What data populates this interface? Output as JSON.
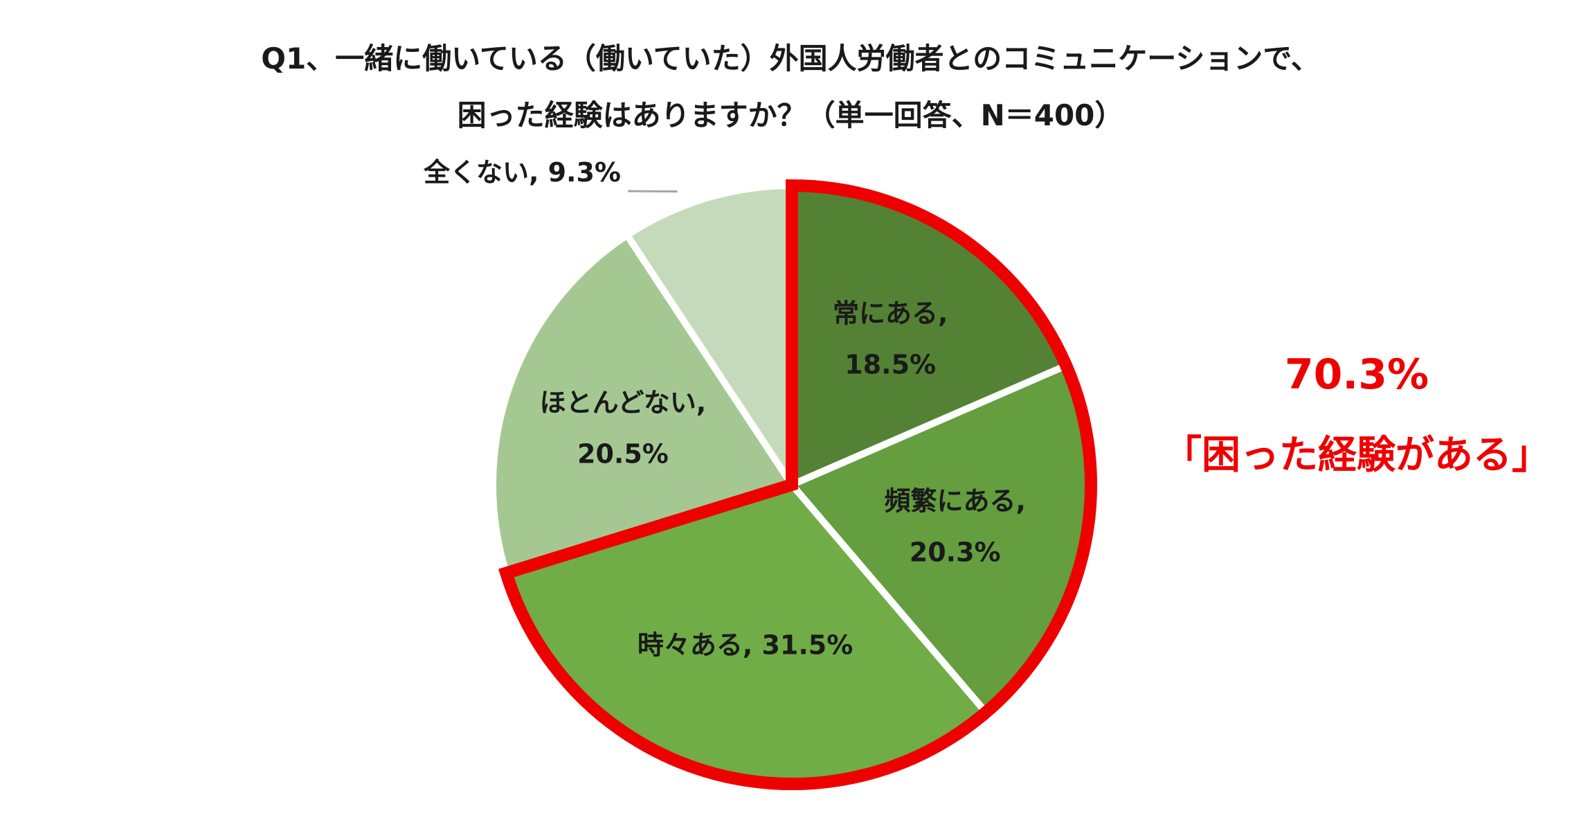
{
  "chart_data": {
    "type": "pie",
    "title_lines": [
      "Q1、一緒に働いている（働いていた）外国人労働者とのコミュニケーションで、",
      "困った経験はありますか？（単一回答、N＝400）"
    ],
    "start": "12 o'clock",
    "direction": "clockwise",
    "slices": [
      {
        "label": "常にある,",
        "value": 18.5,
        "value_text": "18.5%",
        "color": "#548235"
      },
      {
        "label": "頻繁にある,",
        "value": 20.3,
        "value_text": "20.3%",
        "color": "#649E3F"
      },
      {
        "label": "時々ある,",
        "value": 31.5,
        "value_text": "31.5%",
        "color": "#70AD47"
      },
      {
        "label": "ほとんどない,",
        "value": 20.5,
        "value_text": "20.5%",
        "color": "#A5C893"
      },
      {
        "label": "全くない,",
        "value": 9.3,
        "value_text": "9.3%",
        "color": "#C5DABA"
      }
    ],
    "highlight": {
      "slices": [
        "常にある,",
        "頻繁にある,",
        "時々ある,"
      ],
      "color": "#ee0000",
      "value": "70.3%",
      "label": "「困った経験がある」"
    }
  }
}
